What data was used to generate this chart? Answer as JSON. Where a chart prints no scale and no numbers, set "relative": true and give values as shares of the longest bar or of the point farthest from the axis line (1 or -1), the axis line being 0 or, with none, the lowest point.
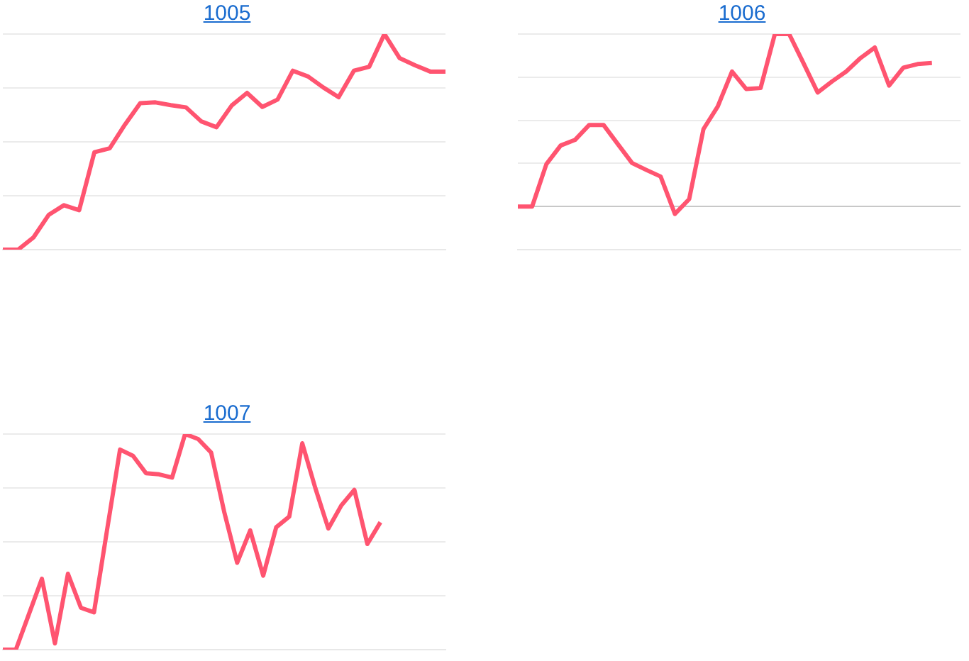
{
  "chart_data": [
    {
      "type": "line",
      "title": "1005",
      "relative": true,
      "grid": "y",
      "categories": [
        null,
        null,
        null,
        null,
        null,
        null,
        null,
        null,
        null,
        null,
        null,
        null,
        null,
        null,
        null,
        null,
        null,
        null,
        null,
        null,
        null,
        null,
        null,
        null,
        null,
        null,
        null,
        null,
        null,
        null
      ],
      "series": [
        {
          "color": "#ff5470",
          "values": [
            0,
            0,
            0.056,
            0.161,
            0.206,
            0.183,
            0.452,
            0.47,
            0.58,
            0.679,
            0.683,
            0.67,
            0.66,
            0.595,
            0.568,
            0.669,
            0.727,
            0.662,
            0.696,
            0.83,
            0.803,
            0.752,
            0.707,
            0.83,
            0.848,
            1,
            0.888,
            0.855,
            0.826,
            0.826
          ]
        }
      ]
    },
    {
      "type": "line",
      "title": "1006",
      "relative": true,
      "grid": "y",
      "categories": [
        null,
        null,
        null,
        null,
        null,
        null,
        null,
        null,
        null,
        null,
        null,
        null,
        null,
        null,
        null,
        null,
        null,
        null,
        null,
        null,
        null,
        null,
        null,
        null,
        null,
        null,
        null,
        null,
        null,
        null,
        null,
        null
      ],
      "series": [
        {
          "color": "#ff5470",
          "values": [
            0,
            0,
            0.246,
            0.354,
            0.386,
            0.473,
            0.473,
            0.362,
            0.252,
            0.212,
            0.174,
            -0.043,
            0.043,
            0.449,
            0.58,
            0.783,
            0.681,
            0.687,
            1,
            1,
            0.832,
            0.661,
            0.725,
            0.783,
            0.861,
            0.922,
            0.701,
            0.805,
            0.826,
            0.832,
            null,
            null
          ]
        }
      ]
    },
    {
      "type": "line",
      "title": "1007",
      "relative": true,
      "grid": "y",
      "categories": [
        null,
        null,
        null,
        null,
        null,
        null,
        null,
        null,
        null,
        null,
        null,
        null,
        null,
        null,
        null,
        null,
        null,
        null,
        null,
        null,
        null,
        null,
        null,
        null,
        null,
        null,
        null,
        null,
        null,
        null,
        null,
        null,
        null,
        null,
        null
      ],
      "series": [
        {
          "color": "#ff5470",
          "values": [
            0,
            0,
            0.164,
            0.329,
            0.029,
            0.352,
            0.194,
            0.173,
            0.553,
            0.928,
            0.899,
            0.818,
            0.813,
            0.798,
            1,
            0.977,
            0.914,
            0.64,
            0.403,
            0.553,
            0.343,
            0.568,
            0.617,
            0.957,
            0.75,
            0.562,
            0.669,
            0.741,
            0.49,
            0.591,
            null,
            null,
            null,
            null,
            null
          ]
        }
      ]
    }
  ]
}
